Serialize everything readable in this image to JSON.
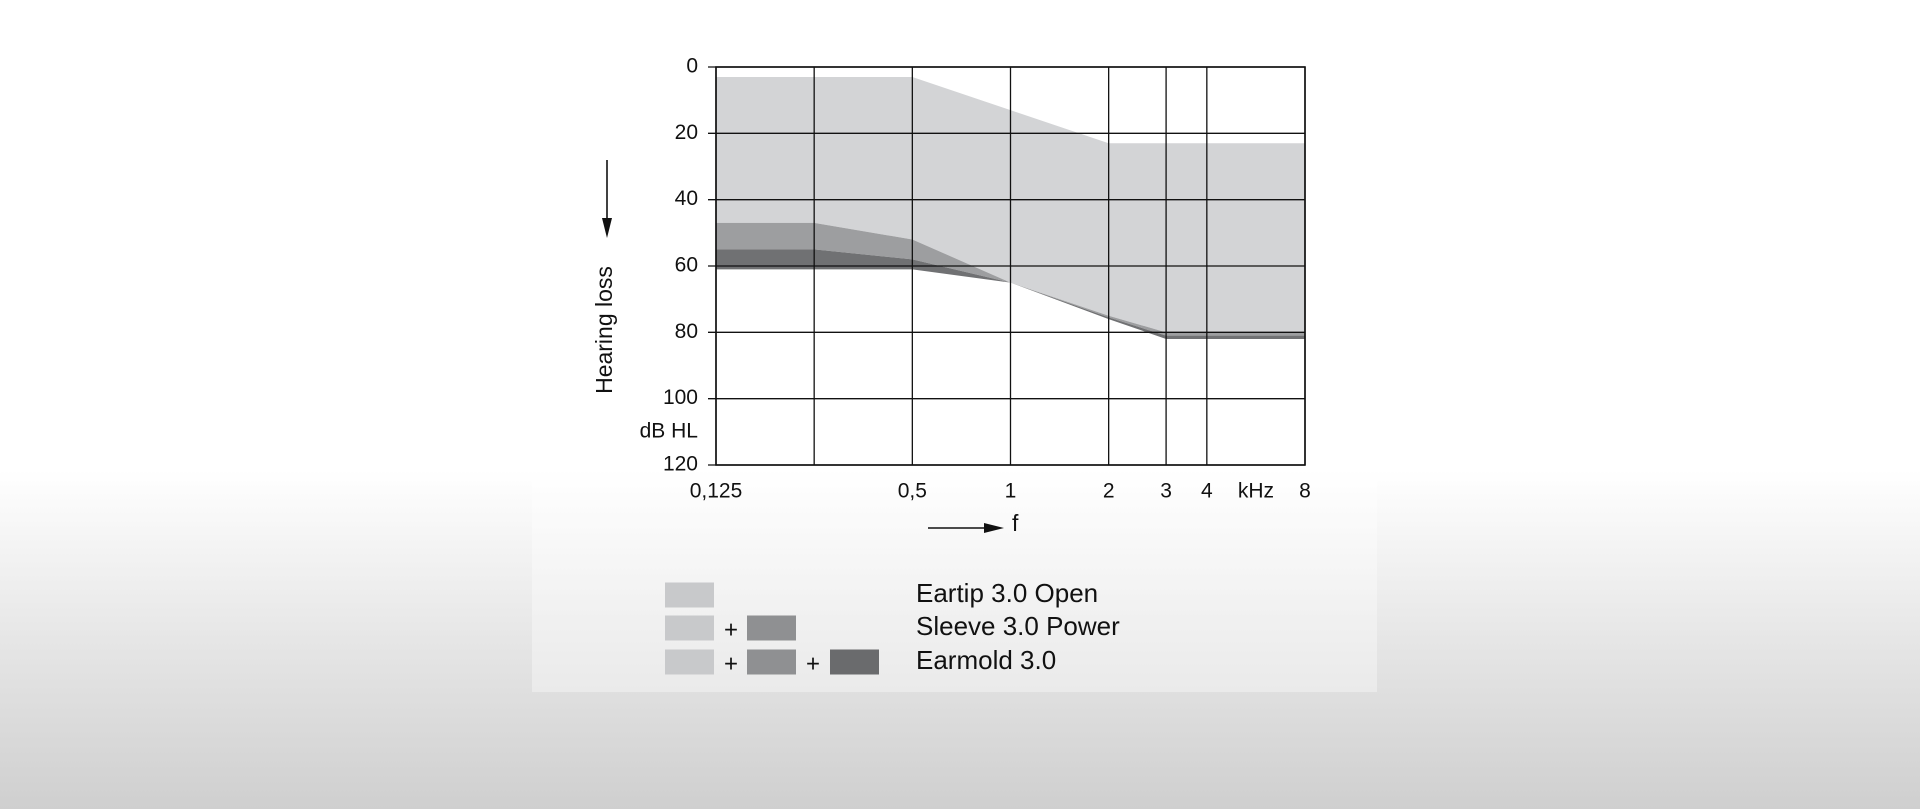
{
  "chart_data": {
    "type": "range",
    "x": [
      0.125,
      0.25,
      0.5,
      1,
      2,
      3,
      4,
      8
    ],
    "series": [
      {
        "name": "Eartip 3.0 Open",
        "color": "#d3d4d6",
        "low": [
          3,
          3,
          3,
          13,
          23,
          23,
          23,
          23
        ],
        "high": [
          47,
          47,
          52,
          65,
          75,
          80,
          80,
          80
        ]
      },
      {
        "name": "Sleeve 3.0 Power",
        "color": "#9d9ea0",
        "low": [
          47,
          47,
          52,
          65,
          75,
          80,
          80,
          80
        ],
        "high": [
          55,
          55,
          58,
          65,
          75.5,
          81,
          81,
          81
        ]
      },
      {
        "name": "Earmold 3.0",
        "color": "#707173",
        "low": [
          55,
          55,
          58,
          65,
          75.5,
          81,
          81,
          81
        ],
        "high": [
          61,
          61,
          61,
          65,
          76,
          82,
          82,
          82
        ]
      }
    ],
    "legend_swatch_colors": [
      "#c8c9cb",
      "#8f9092",
      "#6a6b6d"
    ],
    "legend_separator": "+",
    "xlim": [
      0.125,
      8
    ],
    "xscale": "log",
    "xticks": [
      {
        "value": 0.125,
        "label": "0,125"
      },
      {
        "value": 0.25,
        "label": null
      },
      {
        "value": 0.5,
        "label": "0,5"
      },
      1,
      2,
      3,
      4,
      8
    ],
    "x_unit": "kHz",
    "xlabel": "f",
    "ylim": [
      0,
      120
    ],
    "y_inverted": true,
    "yticks": [
      0,
      20,
      40,
      60,
      80,
      100,
      120
    ],
    "ylabel": "Hearing loss",
    "y_unit": "dB HL",
    "grid": true
  }
}
